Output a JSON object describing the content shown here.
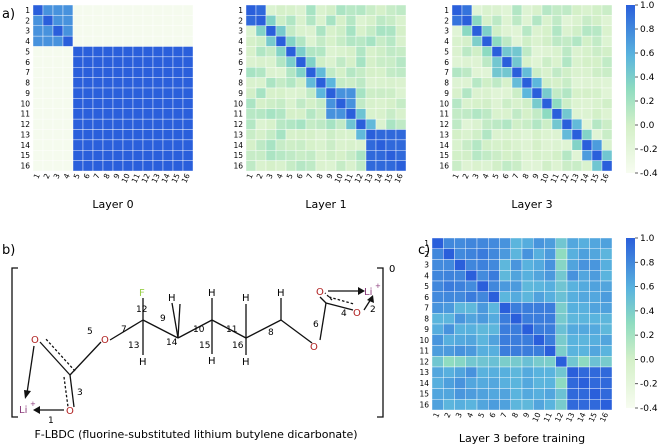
{
  "panels": {
    "a": "a)",
    "b": "b)",
    "c": "c)"
  },
  "heatmaps": [
    {
      "id": "layer0",
      "title": "Layer 0",
      "pattern": "layer0"
    },
    {
      "id": "layer1",
      "title": "Layer 1",
      "pattern": "layer1"
    },
    {
      "id": "layer3",
      "title": "Layer 3",
      "pattern": "layer3"
    },
    {
      "id": "before",
      "title": "Layer 3 before training",
      "pattern": "before"
    }
  ],
  "tick_labels": [
    "1",
    "2",
    "3",
    "4",
    "5",
    "6",
    "7",
    "8",
    "9",
    "10",
    "11",
    "12",
    "13",
    "14",
    "15",
    "16"
  ],
  "colorbar_ticks": [
    "1.0",
    "0.8",
    "0.6",
    "0.4",
    "0.2",
    "0.0",
    "-0.2",
    "-0.4"
  ],
  "colorbar_range": [
    -0.4,
    1.0
  ],
  "colorscale": [
    "#f7fcf0",
    "#2a5fdb"
  ],
  "molecule": {
    "caption": "F-LBDC (fluorine-substituted lithium butylene dicarbonate)",
    "charge": "0",
    "atoms": {
      "O": "O",
      "C": "C",
      "H": "H",
      "F": "F",
      "Li": "Li",
      "plus": "+"
    },
    "bond_numbers": [
      "1",
      "2",
      "3",
      "4",
      "5",
      "6",
      "7",
      "8",
      "9",
      "10",
      "11",
      "12",
      "13",
      "14",
      "15",
      "16"
    ],
    "colors": {
      "oxygen": "#b02020",
      "lithium": "#8a3a7a",
      "fluorine": "#9ad04a",
      "bond": "#111111"
    }
  }
}
